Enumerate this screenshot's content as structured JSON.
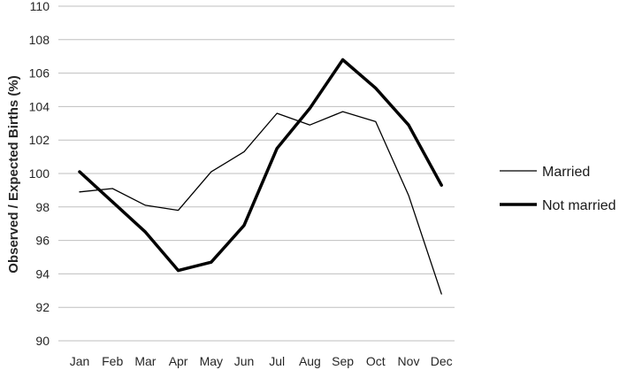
{
  "chart_data": {
    "type": "line",
    "title": "",
    "xlabel": "",
    "ylabel": "Observed / Expected Births (%)",
    "categories": [
      "Jan",
      "Feb",
      "Mar",
      "Apr",
      "May",
      "Jun",
      "Jul",
      "Aug",
      "Sep",
      "Oct",
      "Nov",
      "Dec"
    ],
    "ylim": [
      90,
      110
    ],
    "yticks": [
      "90",
      "92",
      "94",
      "96",
      "98",
      "100",
      "102",
      "104",
      "106",
      "108",
      "110"
    ],
    "grid": "horizontal",
    "legend_position": "right",
    "series": [
      {
        "name": "Married",
        "color": "#000000",
        "line_weight": "thin",
        "values": [
          98.9,
          99.1,
          98.1,
          97.8,
          100.1,
          101.3,
          103.6,
          102.9,
          103.7,
          103.1,
          98.7,
          92.8
        ]
      },
      {
        "name": "Not married",
        "color": "#000000",
        "line_weight": "thick",
        "values": [
          100.1,
          98.3,
          96.5,
          94.2,
          94.7,
          96.9,
          101.5,
          103.9,
          106.8,
          105.1,
          102.9,
          99.3
        ]
      }
    ]
  }
}
